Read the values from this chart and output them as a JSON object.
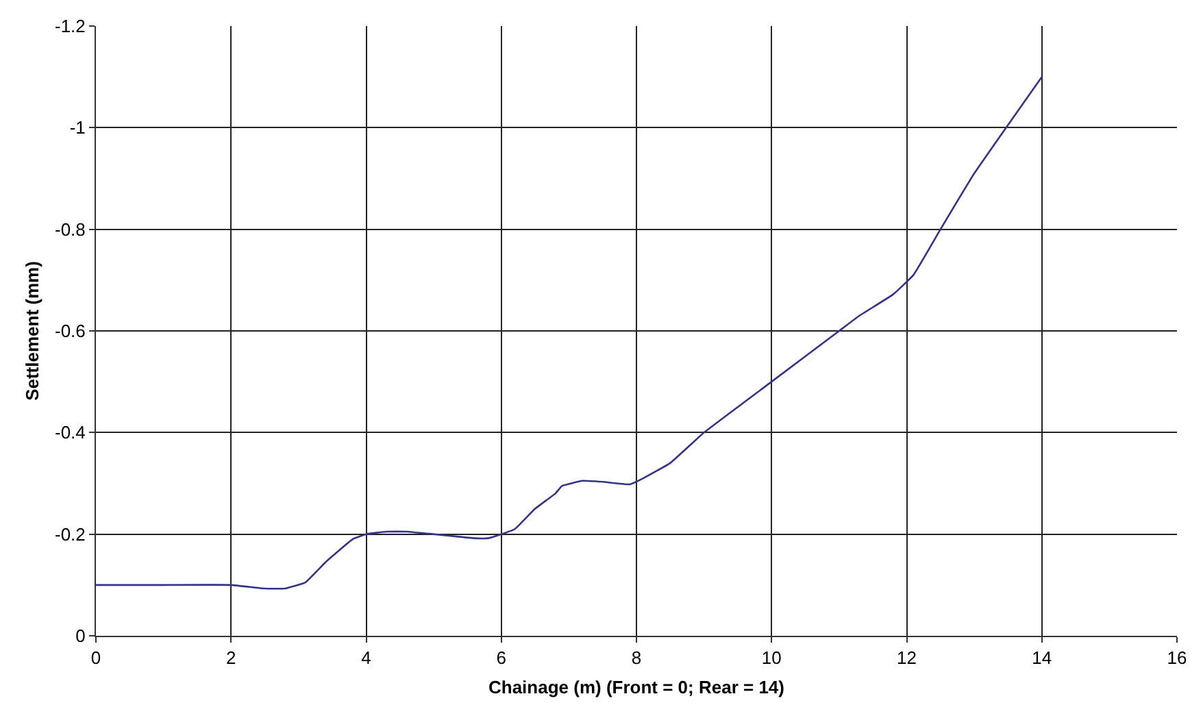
{
  "chart_data": {
    "type": "line",
    "xlabel": "Chainage (m) (Front = 0; Rear = 14)",
    "ylabel": "Settlement (mm)",
    "x": [
      0,
      1,
      2,
      2.5,
      2.8,
      3.1,
      3.4,
      3.8,
      4,
      4.3,
      4.6,
      5,
      5.6,
      5.8,
      6,
      6.2,
      6.5,
      6.8,
      6.9,
      7.2,
      7.5,
      7.9,
      8.1,
      8.5,
      9,
      10,
      11,
      11.3,
      11.8,
      12.1,
      12.5,
      13,
      14
    ],
    "series": [
      {
        "color": "#333388",
        "values": [
          -0.1,
          -0.1,
          -0.1,
          -0.093,
          -0.093,
          -0.105,
          -0.145,
          -0.19,
          -0.2,
          -0.205,
          -0.205,
          -0.2,
          -0.192,
          -0.192,
          -0.2,
          -0.21,
          -0.25,
          -0.28,
          -0.295,
          -0.305,
          -0.303,
          -0.298,
          -0.31,
          -0.34,
          -0.4,
          -0.5,
          -0.6,
          -0.63,
          -0.672,
          -0.71,
          -0.8,
          -0.91,
          -1.1
        ]
      }
    ],
    "xlim": [
      0,
      16
    ],
    "xticks": [
      0,
      2,
      4,
      6,
      8,
      10,
      12,
      14,
      16
    ],
    "ylim": [
      0,
      -1.2
    ],
    "yticks": [
      0,
      -0.2,
      -0.4,
      -0.6,
      -0.8,
      -1,
      -1.2
    ],
    "grid": true,
    "marker": "none",
    "line_style": "solid"
  }
}
